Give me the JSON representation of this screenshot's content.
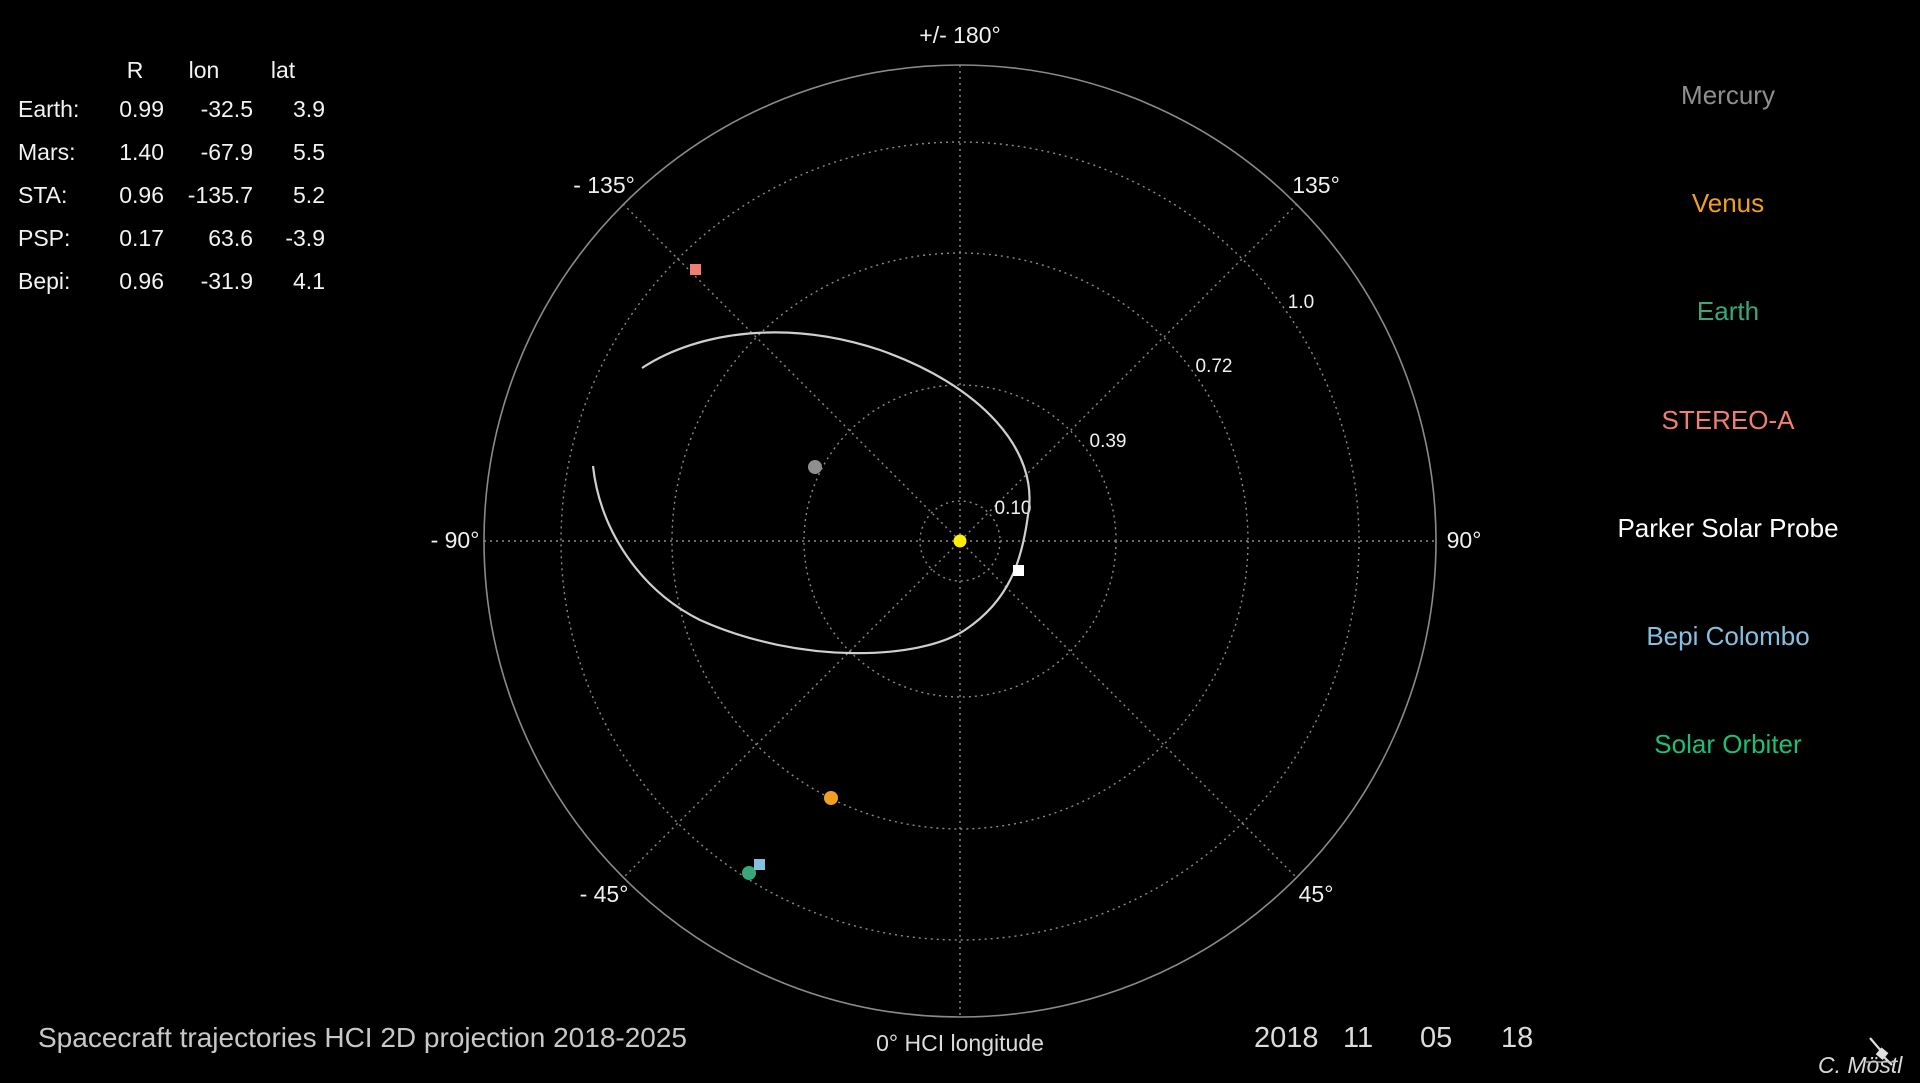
{
  "info_table": {
    "headers": {
      "r": "R",
      "lon": "lon",
      "lat": "lat"
    },
    "rows": [
      {
        "name": "Earth:",
        "r": "0.99",
        "lon": "-32.5",
        "lat": "3.9"
      },
      {
        "name": "Mars:",
        "r": "1.40",
        "lon": "-67.9",
        "lat": "5.5"
      },
      {
        "name": "STA:",
        "r": "0.96",
        "lon": "-135.7",
        "lat": "5.2"
      },
      {
        "name": "PSP:",
        "r": "0.17",
        "lon": "63.6",
        "lat": "-3.9"
      },
      {
        "name": "Bepi:",
        "r": "0.96",
        "lon": "-31.9",
        "lat": "4.1"
      }
    ]
  },
  "legend": [
    {
      "label": "Mercury",
      "color": "#8f8f8f"
    },
    {
      "label": "Venus",
      "color": "#f0a020"
    },
    {
      "label": "Earth",
      "color": "#3aa67c"
    },
    {
      "label": "STEREO-A",
      "color": "#f27e72"
    },
    {
      "label": "Parker Solar Probe",
      "color": "#ffffff"
    },
    {
      "label": "Bepi Colombo",
      "color": "#86c0e0"
    },
    {
      "label": "Solar Orbiter",
      "color": "#1fbf73"
    }
  ],
  "polar": {
    "angle_labels": [
      {
        "key": "top",
        "text": "+/- 180°"
      },
      {
        "key": "top-left",
        "text": "- 135°"
      },
      {
        "key": "top-right",
        "text": "135°"
      },
      {
        "key": "left",
        "text": "- 90°"
      },
      {
        "key": "right",
        "text": "90°"
      },
      {
        "key": "bottom-left",
        "text": "- 45°"
      },
      {
        "key": "bottom-right",
        "text": "45°"
      }
    ],
    "radius_labels": [
      "0.10",
      "0.39",
      "0.72",
      "1.0"
    ],
    "bodies": [
      {
        "name": "Sun",
        "color": "#ffee00",
        "shape": "circle"
      },
      {
        "name": "Mercury",
        "color": "#8f8f8f",
        "shape": "circle"
      },
      {
        "name": "Venus",
        "color": "#f0a020",
        "shape": "circle"
      },
      {
        "name": "Earth",
        "color": "#3aa67c",
        "shape": "circle"
      },
      {
        "name": "STEREO-A",
        "color": "#f27e72",
        "shape": "square"
      },
      {
        "name": "Parker Solar Probe",
        "color": "#ffffff",
        "shape": "square"
      },
      {
        "name": "Bepi Colombo",
        "color": "#86c0e0",
        "shape": "square"
      }
    ]
  },
  "title": "Spacecraft trajectories HCI 2D projection 2018-2025",
  "axis_caption": "0° HCI longitude",
  "date": {
    "year": "2018",
    "month": "11",
    "day": "05",
    "hour": "18"
  },
  "author": "C. Möstl",
  "colors": {
    "background": "#000000",
    "grid": "#8a8a8a",
    "orbit": "#cfcfcf"
  }
}
